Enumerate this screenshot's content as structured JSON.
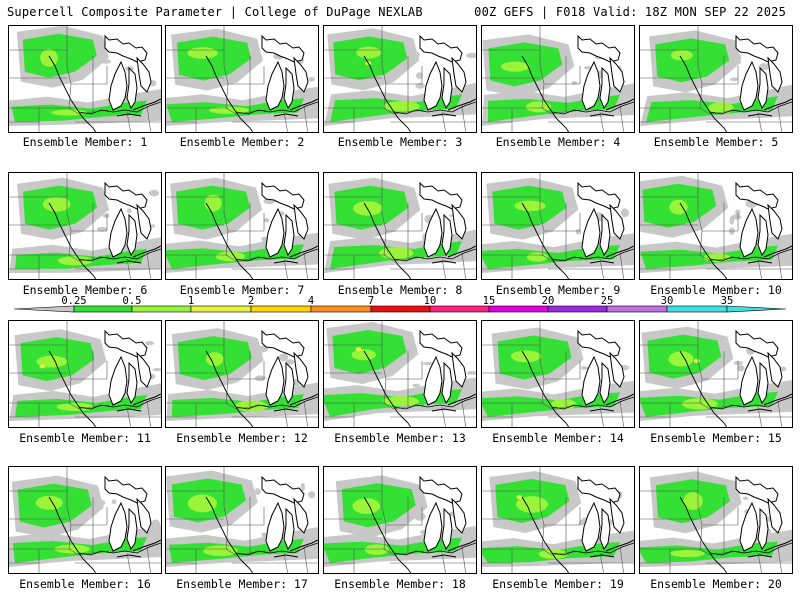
{
  "header": {
    "left": "Supercell Composite Parameter | College of DuPage NEXLAB",
    "right": "00Z GEFS | F018 Valid: 18Z MON SEP 22 2025"
  },
  "member_label": "Ensemble Member:",
  "members": [
    "1",
    "2",
    "3",
    "4",
    "5",
    "6",
    "7",
    "8",
    "9",
    "10",
    "11",
    "12",
    "13",
    "14",
    "15",
    "16",
    "17",
    "18",
    "19",
    "20"
  ],
  "colorbar": {
    "ticks": [
      "0.25",
      "0.5",
      "1",
      "2",
      "4",
      "7",
      "10",
      "15",
      "20",
      "25",
      "30",
      "35"
    ],
    "colors": [
      "#c8c8c8",
      "#33e033",
      "#9af53a",
      "#e8f040",
      "#ffd400",
      "#ff8c1a",
      "#e81010",
      "#ff2080",
      "#e000e0",
      "#9a2ae0",
      "#c070e0",
      "#40e0e0"
    ]
  },
  "map_colors": {
    "low": "#c8c8c8",
    "mid": "#33e033",
    "high": "#9af53a",
    "peak": "#e8f040"
  }
}
